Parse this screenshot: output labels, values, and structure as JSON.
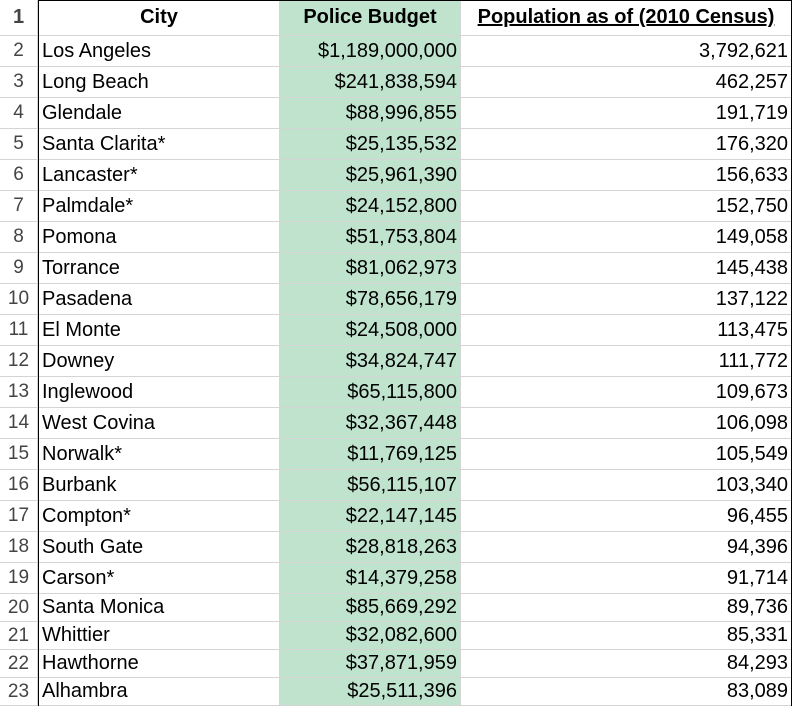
{
  "columns": {
    "city": "City",
    "budget": "Police Budget",
    "population": "Population as of (2010 Census)"
  },
  "header_row_number": "1",
  "rows": [
    {
      "num": "2",
      "city": "Los Angeles",
      "budget": "$1,189,000,000",
      "population": "3,792,621"
    },
    {
      "num": "3",
      "city": "Long Beach",
      "budget": "$241,838,594",
      "population": "462,257"
    },
    {
      "num": "4",
      "city": "Glendale",
      "budget": "$88,996,855",
      "population": "191,719"
    },
    {
      "num": "5",
      "city": "Santa Clarita*",
      "budget": "$25,135,532",
      "population": "176,320"
    },
    {
      "num": "6",
      "city": "Lancaster*",
      "budget": "$25,961,390",
      "population": "156,633"
    },
    {
      "num": "7",
      "city": "Palmdale*",
      "budget": "$24,152,800",
      "population": "152,750"
    },
    {
      "num": "8",
      "city": "Pomona",
      "budget": "$51,753,804",
      "population": "149,058"
    },
    {
      "num": "9",
      "city": "Torrance",
      "budget": "$81,062,973",
      "population": "145,438"
    },
    {
      "num": "10",
      "city": "Pasadena",
      "budget": "$78,656,179",
      "population": "137,122"
    },
    {
      "num": "11",
      "city": "El Monte",
      "budget": "$24,508,000",
      "population": "113,475"
    },
    {
      "num": "12",
      "city": "Downey",
      "budget": "$34,824,747",
      "population": "111,772"
    },
    {
      "num": "13",
      "city": "Inglewood",
      "budget": "$65,115,800",
      "population": "109,673"
    },
    {
      "num": "14",
      "city": "West Covina",
      "budget": "$32,367,448",
      "population": "106,098"
    },
    {
      "num": "15",
      "city": "Norwalk*",
      "budget": "$11,769,125",
      "population": "105,549"
    },
    {
      "num": "16",
      "city": "Burbank",
      "budget": "$56,115,107",
      "population": "103,340"
    },
    {
      "num": "17",
      "city": "Compton*",
      "budget": "$22,147,145",
      "population": "96,455"
    },
    {
      "num": "18",
      "city": "South Gate",
      "budget": "$28,818,263",
      "population": "94,396"
    },
    {
      "num": "19",
      "city": "Carson*",
      "budget": "$14,379,258",
      "population": "91,714"
    },
    {
      "num": "20",
      "city": "Santa Monica",
      "budget": "$85,669,292",
      "population": "89,736"
    },
    {
      "num": "21",
      "city": "Whittier",
      "budget": "$32,082,600",
      "population": "85,331"
    },
    {
      "num": "22",
      "city": "Hawthorne",
      "budget": "$37,871,959",
      "population": "84,293"
    },
    {
      "num": "23",
      "city": "Alhambra",
      "budget": "$25,511,396",
      "population": "83,089"
    }
  ],
  "colors": {
    "budget_fill": "#bfe3cd",
    "gridline": "#d4d4d4",
    "border": "#000000"
  }
}
